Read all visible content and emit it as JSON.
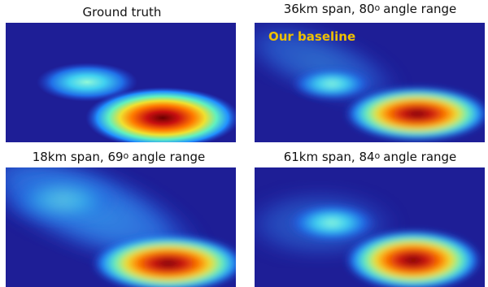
{
  "panels": [
    {
      "title": {
        "text": "Ground truth"
      }
    },
    {
      "title": {
        "prefix": "36km span, 80",
        "superscript": "o",
        "suffix": "angle range"
      },
      "label": "Our baseline"
    },
    {
      "title": {
        "prefix": "18km span, 69",
        "superscript": "o",
        "suffix": "angle range"
      }
    },
    {
      "title": {
        "prefix": "61km span, 84",
        "superscript": "o",
        "suffix": "angle range"
      }
    }
  ]
}
